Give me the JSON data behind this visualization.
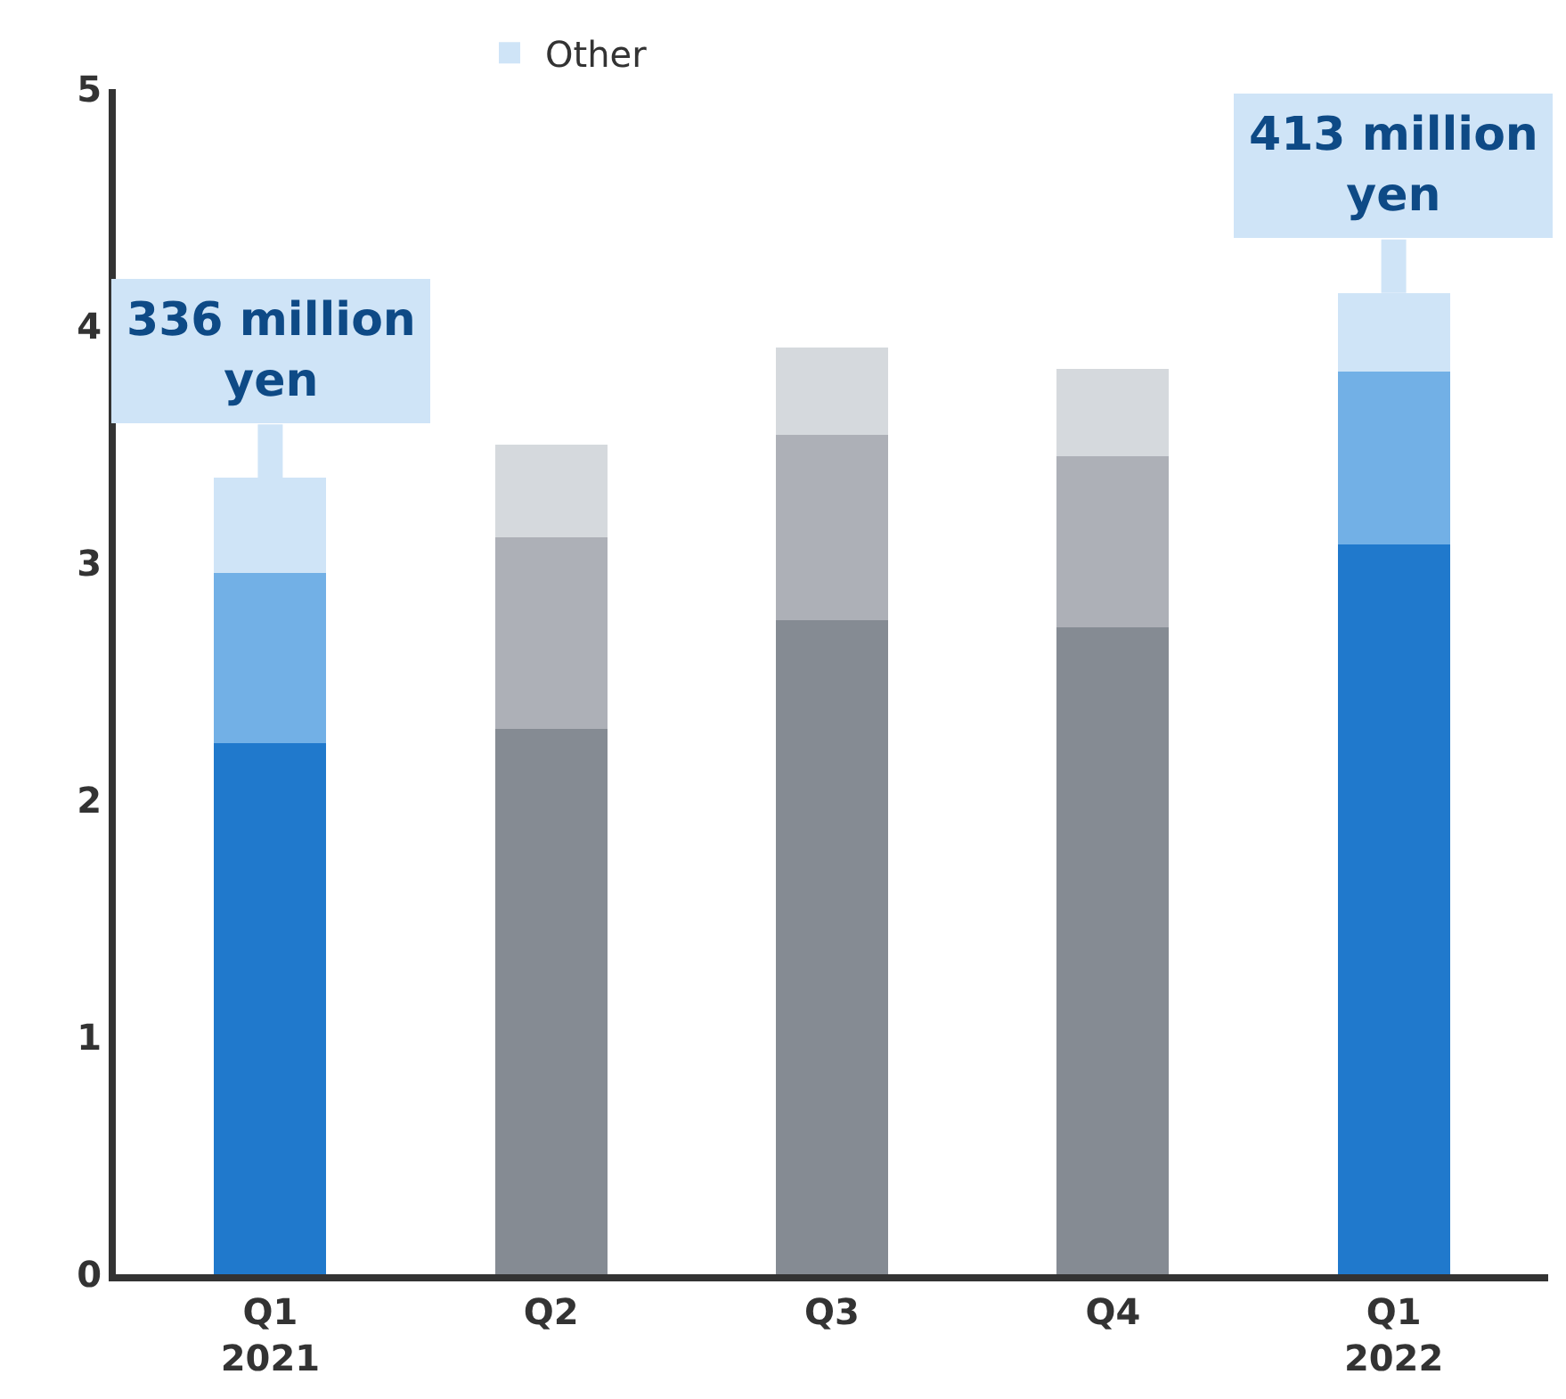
{
  "chart_data": {
    "type": "bar",
    "stacked": true,
    "categories": [
      "Q1\n2021",
      "Q2",
      "Q3",
      "Q4",
      "Q1\n2022"
    ],
    "series": [
      {
        "colors": [
          "#2079cc",
          "#858b93",
          "#858b93",
          "#858b93",
          "#2079cc"
        ],
        "values": [
          2.24,
          2.3,
          2.76,
          2.73,
          3.08
        ]
      },
      {
        "colors": [
          "#72b0e6",
          "#adb0b7",
          "#adb0b7",
          "#adb0b7",
          "#72b0e6"
        ],
        "values": [
          0.72,
          0.81,
          0.78,
          0.72,
          0.73
        ]
      },
      {
        "name": "Other",
        "color": "#cfe4f7",
        "colors": [
          "#cfe4f7",
          "#d5d9dd",
          "#d5d9dd",
          "#d5d9dd",
          "#cfe4f7"
        ],
        "values": [
          0.4,
          0.39,
          0.37,
          0.37,
          0.33
        ]
      }
    ],
    "ylim": [
      0,
      5
    ],
    "yticks": [
      0,
      1,
      2,
      3,
      4,
      5
    ],
    "grid": false,
    "legend": "top",
    "annotations": [
      {
        "text": "336 million\nyen",
        "x": "Q1\n2021",
        "y": 3.36
      },
      {
        "text": "413 million\nyen",
        "x": "Q1\n2022",
        "y": 4.14
      }
    ]
  }
}
